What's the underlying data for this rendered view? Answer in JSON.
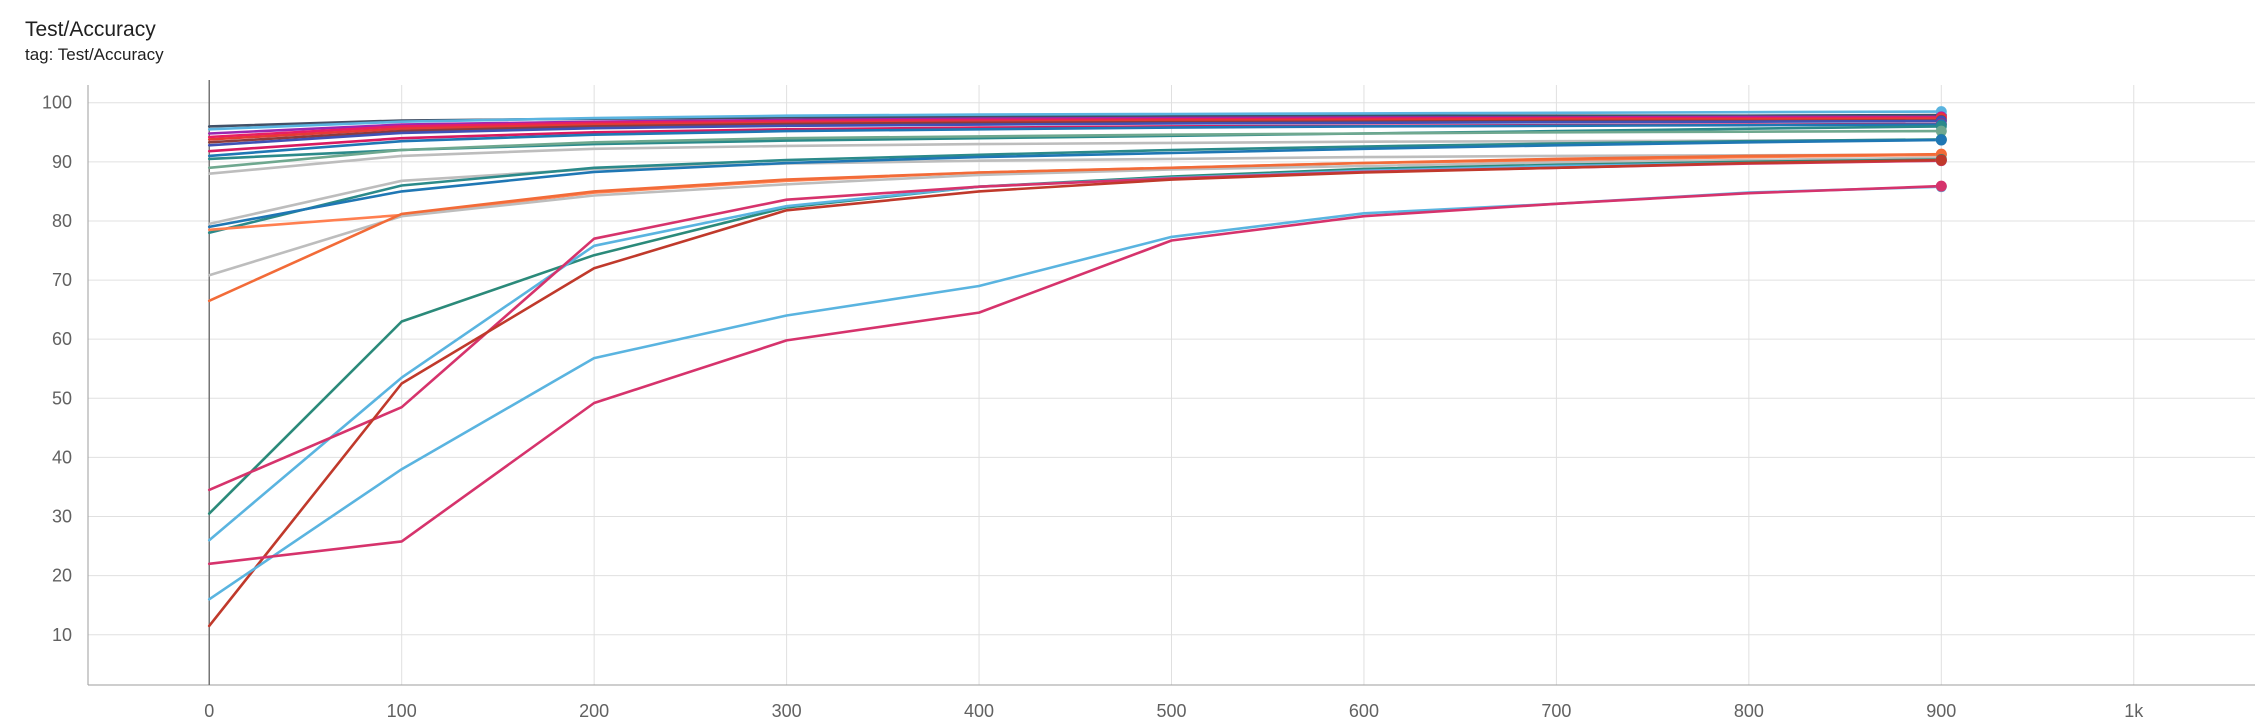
{
  "header": {
    "title": "Test/Accuracy",
    "tag": "tag: Test/Accuracy"
  },
  "chart_data": {
    "type": "line",
    "title": "Test/Accuracy",
    "subtitle": "tag: Test/Accuracy",
    "xlabel": "",
    "ylabel": "",
    "xlim": [
      -63,
      1063
    ],
    "ylim": [
      1.5,
      103
    ],
    "grid": true,
    "legend": "none",
    "x_ticks": [
      0,
      100,
      200,
      300,
      400,
      500,
      600,
      700,
      800,
      900,
      1000
    ],
    "x_tick_labels": [
      "0",
      "100",
      "200",
      "300",
      "400",
      "500",
      "600",
      "700",
      "800",
      "900",
      "1k"
    ],
    "y_ticks": [
      10,
      20,
      30,
      40,
      50,
      60,
      70,
      80,
      90,
      100
    ],
    "y_tick_labels": [
      "10",
      "20",
      "30",
      "40",
      "50",
      "60",
      "70",
      "80",
      "90",
      "100"
    ],
    "x": [
      0,
      100,
      200,
      300,
      400,
      500,
      600,
      700,
      800,
      900
    ],
    "series": [
      {
        "color": "#425066",
        "values": [
          96.0,
          97.0,
          97.3,
          97.5,
          97.6,
          97.7,
          97.8,
          97.8,
          97.8,
          97.9
        ]
      },
      {
        "color": "#5ab4e0",
        "values": [
          95.5,
          96.8,
          97.4,
          97.8,
          98.0,
          98.1,
          98.2,
          98.3,
          98.4,
          98.5
        ]
      },
      {
        "color": "#9c27b0",
        "values": [
          94.8,
          96.3,
          96.8,
          97.1,
          97.3,
          97.4,
          97.5,
          97.5,
          97.6,
          97.6
        ]
      },
      {
        "color": "#e91e63",
        "values": [
          94.2,
          96.0,
          96.6,
          96.9,
          97.1,
          97.2,
          97.3,
          97.4,
          97.4,
          97.5
        ]
      },
      {
        "color": "#e53935",
        "values": [
          93.8,
          95.6,
          96.3,
          96.6,
          96.8,
          97.0,
          97.1,
          97.2,
          97.2,
          97.3
        ]
      },
      {
        "color": "#8e3b3b",
        "values": [
          93.3,
          95.2,
          96.0,
          96.4,
          96.6,
          96.7,
          96.8,
          96.9,
          96.9,
          97.0
        ]
      },
      {
        "color": "#3f51b5",
        "values": [
          92.8,
          94.9,
          95.7,
          96.1,
          96.3,
          96.5,
          96.6,
          96.7,
          96.8,
          96.9
        ]
      },
      {
        "color": "#d81b60",
        "values": [
          91.8,
          94.0,
          95.0,
          95.5,
          95.8,
          96.0,
          96.1,
          96.2,
          96.3,
          96.4
        ]
      },
      {
        "color": "#1f77b4",
        "values": [
          91.0,
          93.5,
          94.6,
          95.2,
          95.5,
          95.8,
          96.0,
          96.1,
          96.2,
          96.3
        ]
      },
      {
        "color": "#2b8a8a",
        "values": [
          90.5,
          92.0,
          93.0,
          93.6,
          94.0,
          94.4,
          94.8,
          95.2,
          95.6,
          96.0
        ]
      },
      {
        "color": "#6fa88f",
        "values": [
          89.0,
          92.0,
          93.3,
          94.0,
          94.3,
          94.6,
          94.8,
          95.0,
          95.1,
          95.2
        ]
      },
      {
        "color": "#bdbdbd",
        "values": [
          88.0,
          91.0,
          92.2,
          92.7,
          93.0,
          93.2,
          93.4,
          93.5,
          93.6,
          93.7
        ]
      },
      {
        "color": "#bdbdbd",
        "values": [
          79.5,
          86.8,
          88.8,
          89.7,
          90.2,
          90.5,
          90.8,
          91.0,
          91.1,
          91.2
        ]
      },
      {
        "color": "#2b8a8a",
        "values": [
          78.0,
          86.0,
          89.0,
          90.3,
          91.2,
          92.0,
          92.6,
          93.1,
          93.5,
          93.8
        ]
      },
      {
        "color": "#1f77b4",
        "values": [
          79.0,
          85.0,
          88.3,
          89.8,
          90.8,
          91.5,
          92.2,
          92.8,
          93.3,
          93.7
        ]
      },
      {
        "color": "#ff7f50",
        "values": [
          78.5,
          81.0,
          84.8,
          86.8,
          88.2,
          89.0,
          89.8,
          90.3,
          90.8,
          91.2
        ]
      },
      {
        "color": "#bdbdbd",
        "values": [
          70.8,
          80.8,
          84.3,
          86.2,
          87.8,
          88.7,
          89.3,
          89.9,
          90.3,
          90.7
        ]
      },
      {
        "color": "#f26b38",
        "values": [
          66.5,
          81.2,
          85.0,
          87.0,
          88.2,
          89.0,
          89.8,
          90.5,
          91.0,
          91.3
        ]
      },
      {
        "color": "#2b8a7a",
        "values": [
          30.5,
          63.0,
          74.2,
          82.3,
          85.8,
          87.5,
          88.8,
          89.5,
          90.0,
          90.4
        ]
      },
      {
        "color": "#5ab4e0",
        "values": [
          26.0,
          53.5,
          75.8,
          82.5,
          85.8,
          87.3,
          88.5,
          89.3,
          89.8,
          90.2
        ]
      },
      {
        "color": "#d6336c",
        "values": [
          34.5,
          48.5,
          77.0,
          83.6,
          85.8,
          87.2,
          88.3,
          89.0,
          89.7,
          90.2
        ]
      },
      {
        "color": "#c0392b",
        "values": [
          11.5,
          52.5,
          72.0,
          81.8,
          85.0,
          87.0,
          88.2,
          89.0,
          89.8,
          90.3
        ]
      },
      {
        "color": "#5ab4e0",
        "values": [
          16.0,
          38.0,
          56.8,
          64.0,
          69.0,
          77.3,
          81.3,
          82.9,
          84.8,
          85.8
        ]
      },
      {
        "color": "#d6336c",
        "values": [
          22.0,
          25.8,
          49.2,
          59.8,
          64.5,
          76.7,
          80.8,
          82.9,
          84.7,
          85.9
        ]
      }
    ]
  }
}
